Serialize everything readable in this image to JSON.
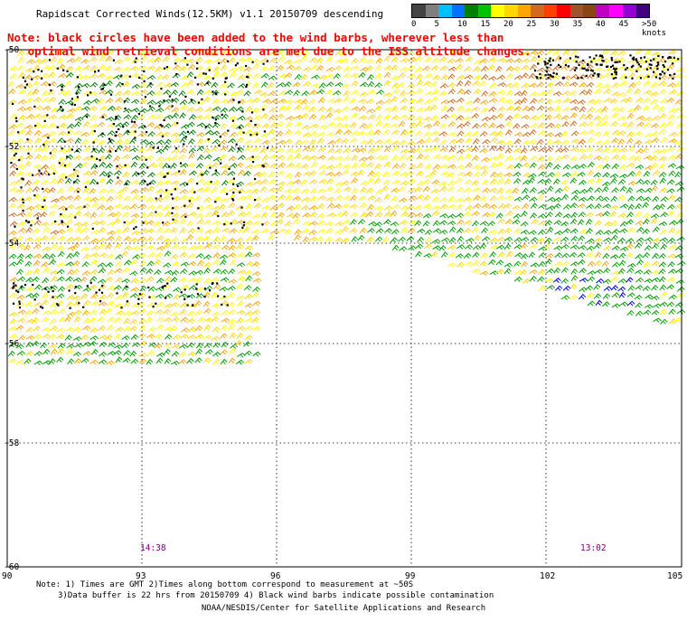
{
  "header": {
    "title": "Rapidscat Corrected Winds(12.5KM) v1.1 20150709 descending",
    "note_line1": "Note: black circles have been added to the wind barbs, wherever less than",
    "note_line2": "   optimal wind retrieval conditions are met due to the ISS altitude changes."
  },
  "legend": {
    "colors": [
      "#444444",
      "#7f7f7f",
      "#00bfff",
      "#0070ff",
      "#007f00",
      "#00c000",
      "#ffff00",
      "#ffd700",
      "#ffa500",
      "#d2691e",
      "#ff4000",
      "#ff0000",
      "#a0522d",
      "#8b4513",
      "#c000c0",
      "#ff00ff",
      "#9400d3",
      "#400080"
    ],
    "labels": [
      "0",
      "5",
      "10",
      "15",
      "20",
      "25",
      "30",
      "35",
      "40",
      "45",
      ">50 knots"
    ]
  },
  "map": {
    "lat_labels": [
      "-50",
      "-52",
      "-54",
      "-56",
      "-58",
      "-60"
    ],
    "lon_labels": [
      "90",
      "93",
      "96",
      "99",
      "102",
      "105"
    ],
    "time_labels": [
      "14:38",
      "13:02"
    ],
    "colors": {
      "gridline": "#000000",
      "yellow": "#ffff00",
      "gold": "#ffd700",
      "orange": "#ffa500",
      "brown": "#d2691e",
      "green": "#00a000",
      "dark_green": "#007f00",
      "blue": "#0000ff",
      "time": "#800080"
    }
  },
  "footer": {
    "line1": "Note: 1) Times are GMT 2)Times along bottom correspond to measurement at ~50S",
    "line2": "3)Data buffer is 22 hrs from 20150709 4) Black wind barbs indicate possible contamination",
    "line3": "NOAA/NESDIS/Center for Satellite Applications and Research"
  }
}
